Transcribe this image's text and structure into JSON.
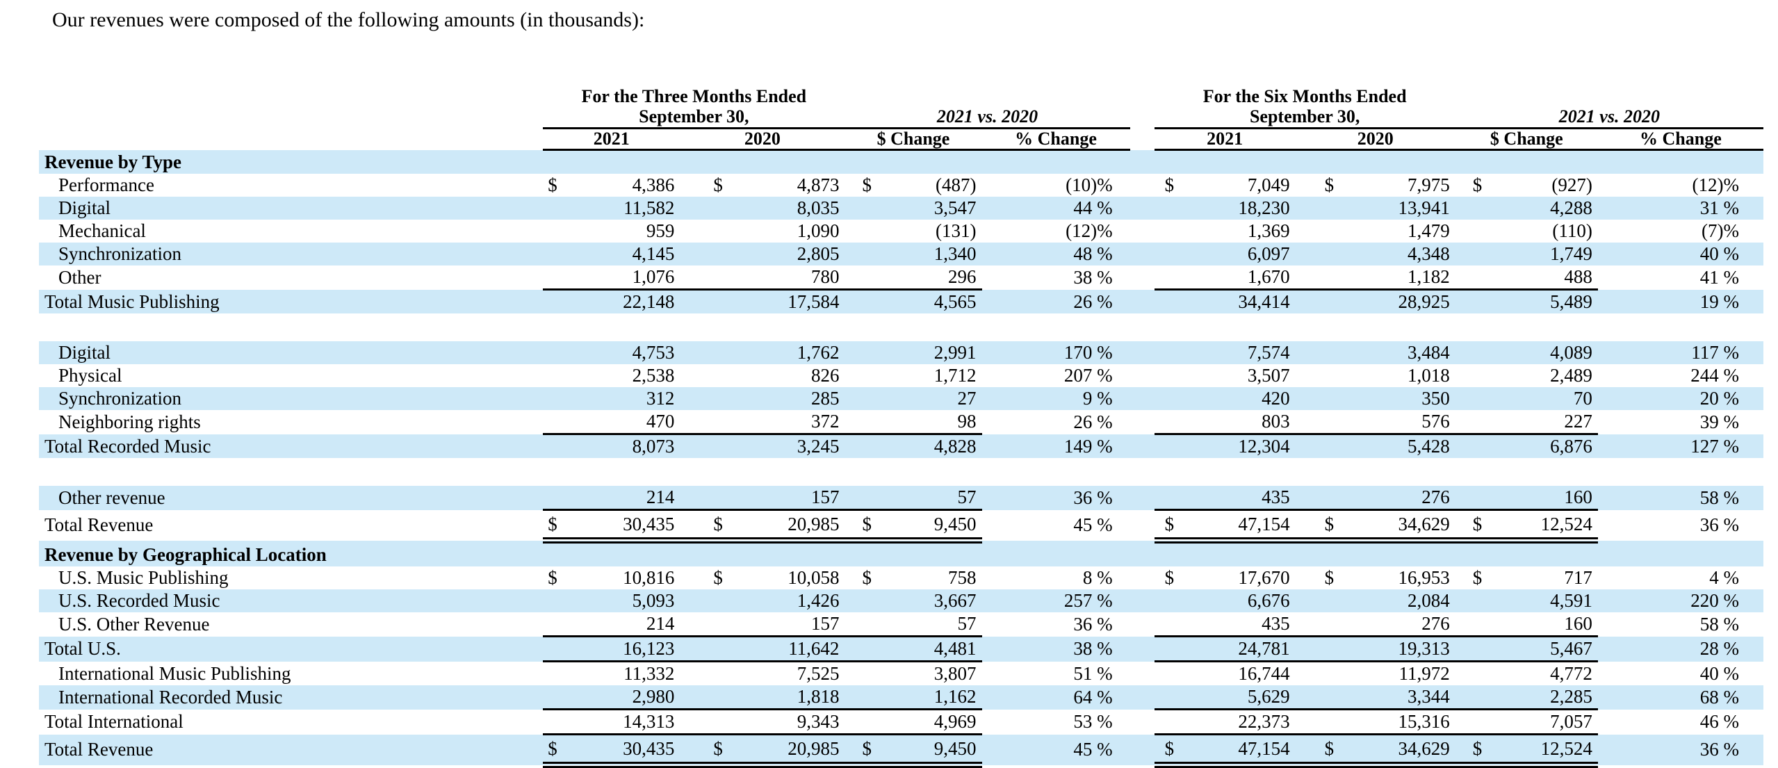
{
  "intro": "Our revenues were composed of the following amounts (in thousands):",
  "colors": {
    "row_highlight": "#cee9f8",
    "text": "#000000",
    "background": "#ffffff"
  },
  "table": {
    "header": {
      "three_months_title": "For the Three Months Ended",
      "three_months_subtitle": "September 30,",
      "six_months_title": "For the Six Months Ended",
      "six_months_subtitle": "September 30,",
      "vs_label": "2021 vs. 2020",
      "col_2021": "2021",
      "col_2020": "2020",
      "col_dollar_change": "$ Change",
      "col_percent_change": "% Change"
    },
    "rows": [
      {
        "label": "Revenue by Type",
        "section": true,
        "bg": "blue"
      },
      {
        "label": "Performance",
        "indent": true,
        "bg": "white",
        "rule": "",
        "cells": [
          "$",
          "4,386",
          "$",
          "4,873",
          "$",
          "(487)",
          "(10)%",
          "$",
          "7,049",
          "$",
          "7,975",
          "$",
          "(927)",
          "(12)%"
        ]
      },
      {
        "label": "Digital",
        "indent": true,
        "bg": "blue",
        "rule": "",
        "cells": [
          "",
          "11,582",
          "",
          "8,035",
          "",
          "3,547",
          "44 %",
          "",
          "18,230",
          "",
          "13,941",
          "",
          "4,288",
          "31 %"
        ]
      },
      {
        "label": "Mechanical",
        "indent": true,
        "bg": "white",
        "rule": "",
        "cells": [
          "",
          "959",
          "",
          "1,090",
          "",
          "(131)",
          "(12)%",
          "",
          "1,369",
          "",
          "1,479",
          "",
          "(110)",
          "(7)%"
        ]
      },
      {
        "label": "Synchronization",
        "indent": true,
        "bg": "blue",
        "rule": "",
        "cells": [
          "",
          "4,145",
          "",
          "2,805",
          "",
          "1,340",
          "48 %",
          "",
          "6,097",
          "",
          "4,348",
          "",
          "1,749",
          "40 %"
        ]
      },
      {
        "label": "Other",
        "indent": true,
        "bg": "white",
        "rule": "single",
        "cells": [
          "",
          "1,076",
          "",
          "780",
          "",
          "296",
          "38 %",
          "",
          "1,670",
          "",
          "1,182",
          "",
          "488",
          "41 %"
        ]
      },
      {
        "label": "Total Music Publishing",
        "indent": false,
        "bg": "blue",
        "rule": "",
        "cells": [
          "",
          "22,148",
          "",
          "17,584",
          "",
          "4,565",
          "26 %",
          "",
          "34,414",
          "",
          "28,925",
          "",
          "5,489",
          "19 %"
        ]
      },
      {
        "spacer": true
      },
      {
        "label": "Digital",
        "indent": true,
        "bg": "blue",
        "rule": "",
        "cells": [
          "",
          "4,753",
          "",
          "1,762",
          "",
          "2,991",
          "170 %",
          "",
          "7,574",
          "",
          "3,484",
          "",
          "4,089",
          "117 %"
        ]
      },
      {
        "label": "Physical",
        "indent": true,
        "bg": "white",
        "rule": "",
        "cells": [
          "",
          "2,538",
          "",
          "826",
          "",
          "1,712",
          "207 %",
          "",
          "3,507",
          "",
          "1,018",
          "",
          "2,489",
          "244 %"
        ]
      },
      {
        "label": "Synchronization",
        "indent": true,
        "bg": "blue",
        "rule": "",
        "cells": [
          "",
          "312",
          "",
          "285",
          "",
          "27",
          "9 %",
          "",
          "420",
          "",
          "350",
          "",
          "70",
          "20 %"
        ]
      },
      {
        "label": "Neighboring rights",
        "indent": true,
        "bg": "white",
        "rule": "single",
        "cells": [
          "",
          "470",
          "",
          "372",
          "",
          "98",
          "26 %",
          "",
          "803",
          "",
          "576",
          "",
          "227",
          "39 %"
        ]
      },
      {
        "label": "Total Recorded Music",
        "indent": false,
        "bg": "blue",
        "rule": "",
        "cells": [
          "",
          "8,073",
          "",
          "3,245",
          "",
          "4,828",
          "149 %",
          "",
          "12,304",
          "",
          "5,428",
          "",
          "6,876",
          "127 %"
        ]
      },
      {
        "spacer": true
      },
      {
        "label": "Other revenue",
        "indent": true,
        "bg": "blue",
        "rule": "single",
        "cells": [
          "",
          "214",
          "",
          "157",
          "",
          "57",
          "36 %",
          "",
          "435",
          "",
          "276",
          "",
          "160",
          "58 %"
        ]
      },
      {
        "label": "Total Revenue",
        "indent": false,
        "bg": "white",
        "rule": "double",
        "cells": [
          "$",
          "30,435",
          "$",
          "20,985",
          "$",
          "9,450",
          "45 %",
          "$",
          "47,154",
          "$",
          "34,629",
          "$",
          "12,524",
          "36 %"
        ]
      },
      {
        "label": "Revenue by Geographical Location",
        "section": true,
        "bg": "blue"
      },
      {
        "label": "U.S. Music Publishing",
        "indent": true,
        "bg": "white",
        "rule": "",
        "cells": [
          "$",
          "10,816",
          "$",
          "10,058",
          "$",
          "758",
          "8 %",
          "$",
          "17,670",
          "$",
          "16,953",
          "$",
          "717",
          "4 %"
        ]
      },
      {
        "label": "U.S. Recorded Music",
        "indent": true,
        "bg": "blue",
        "rule": "",
        "cells": [
          "",
          "5,093",
          "",
          "1,426",
          "",
          "3,667",
          "257 %",
          "",
          "6,676",
          "",
          "2,084",
          "",
          "4,591",
          "220 %"
        ]
      },
      {
        "label": "U.S. Other Revenue",
        "indent": true,
        "bg": "white",
        "rule": "single",
        "cells": [
          "",
          "214",
          "",
          "157",
          "",
          "57",
          "36 %",
          "",
          "435",
          "",
          "276",
          "",
          "160",
          "58 %"
        ]
      },
      {
        "label": "Total U.S.",
        "indent": false,
        "bg": "blue",
        "rule": "single",
        "cells": [
          "",
          "16,123",
          "",
          "11,642",
          "",
          "4,481",
          "38 %",
          "",
          "24,781",
          "",
          "19,313",
          "",
          "5,467",
          "28 %"
        ]
      },
      {
        "label": "International Music Publishing",
        "indent": true,
        "bg": "white",
        "rule": "",
        "cells": [
          "",
          "11,332",
          "",
          "7,525",
          "",
          "3,807",
          "51 %",
          "",
          "16,744",
          "",
          "11,972",
          "",
          "4,772",
          "40 %"
        ]
      },
      {
        "label": "International Recorded Music",
        "indent": true,
        "bg": "blue",
        "rule": "single",
        "cells": [
          "",
          "2,980",
          "",
          "1,818",
          "",
          "1,162",
          "64 %",
          "",
          "5,629",
          "",
          "3,344",
          "",
          "2,285",
          "68 %"
        ]
      },
      {
        "label": "Total International",
        "indent": false,
        "bg": "white",
        "rule": "single",
        "cells": [
          "",
          "14,313",
          "",
          "9,343",
          "",
          "4,969",
          "53 %",
          "",
          "22,373",
          "",
          "15,316",
          "",
          "7,057",
          "46 %"
        ]
      },
      {
        "label": "Total Revenue",
        "indent": false,
        "bg": "blue",
        "rule": "double",
        "cells": [
          "$",
          "30,435",
          "$",
          "20,985",
          "$",
          "9,450",
          "45 %",
          "$",
          "47,154",
          "$",
          "34,629",
          "$",
          "12,524",
          "36 %"
        ]
      }
    ]
  }
}
